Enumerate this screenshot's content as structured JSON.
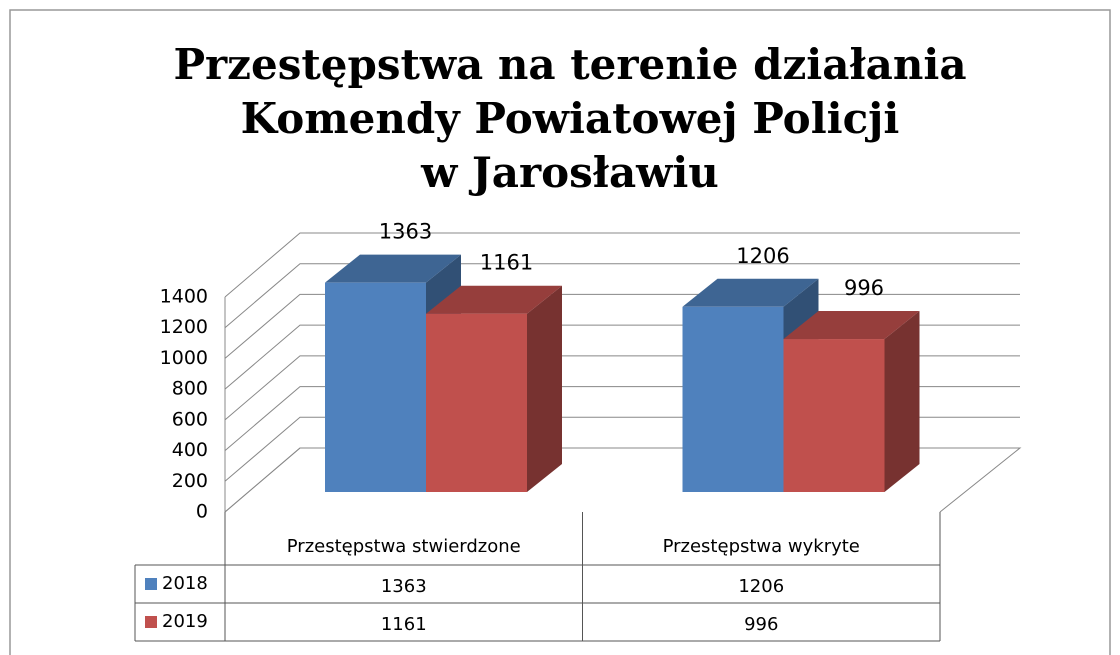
{
  "chart_data": {
    "type": "bar3d",
    "title": [
      "Przestępstwa na terenie działania",
      "Komendy Powiatowej Policji",
      "w Jarosławiu"
    ],
    "categories": [
      "Przestępstwa stwierdzone",
      "Przestępstwa wykryte"
    ],
    "series": [
      {
        "name": "2018",
        "color": "#4f81bd",
        "values": [
          1363,
          1206
        ]
      },
      {
        "name": "2019",
        "color": "#c0504d",
        "values": [
          1161,
          996
        ]
      }
    ],
    "ylim": [
      0,
      1400
    ],
    "yticks": [
      0,
      200,
      400,
      600,
      800,
      1000,
      1200,
      1400
    ],
    "grid": true
  }
}
